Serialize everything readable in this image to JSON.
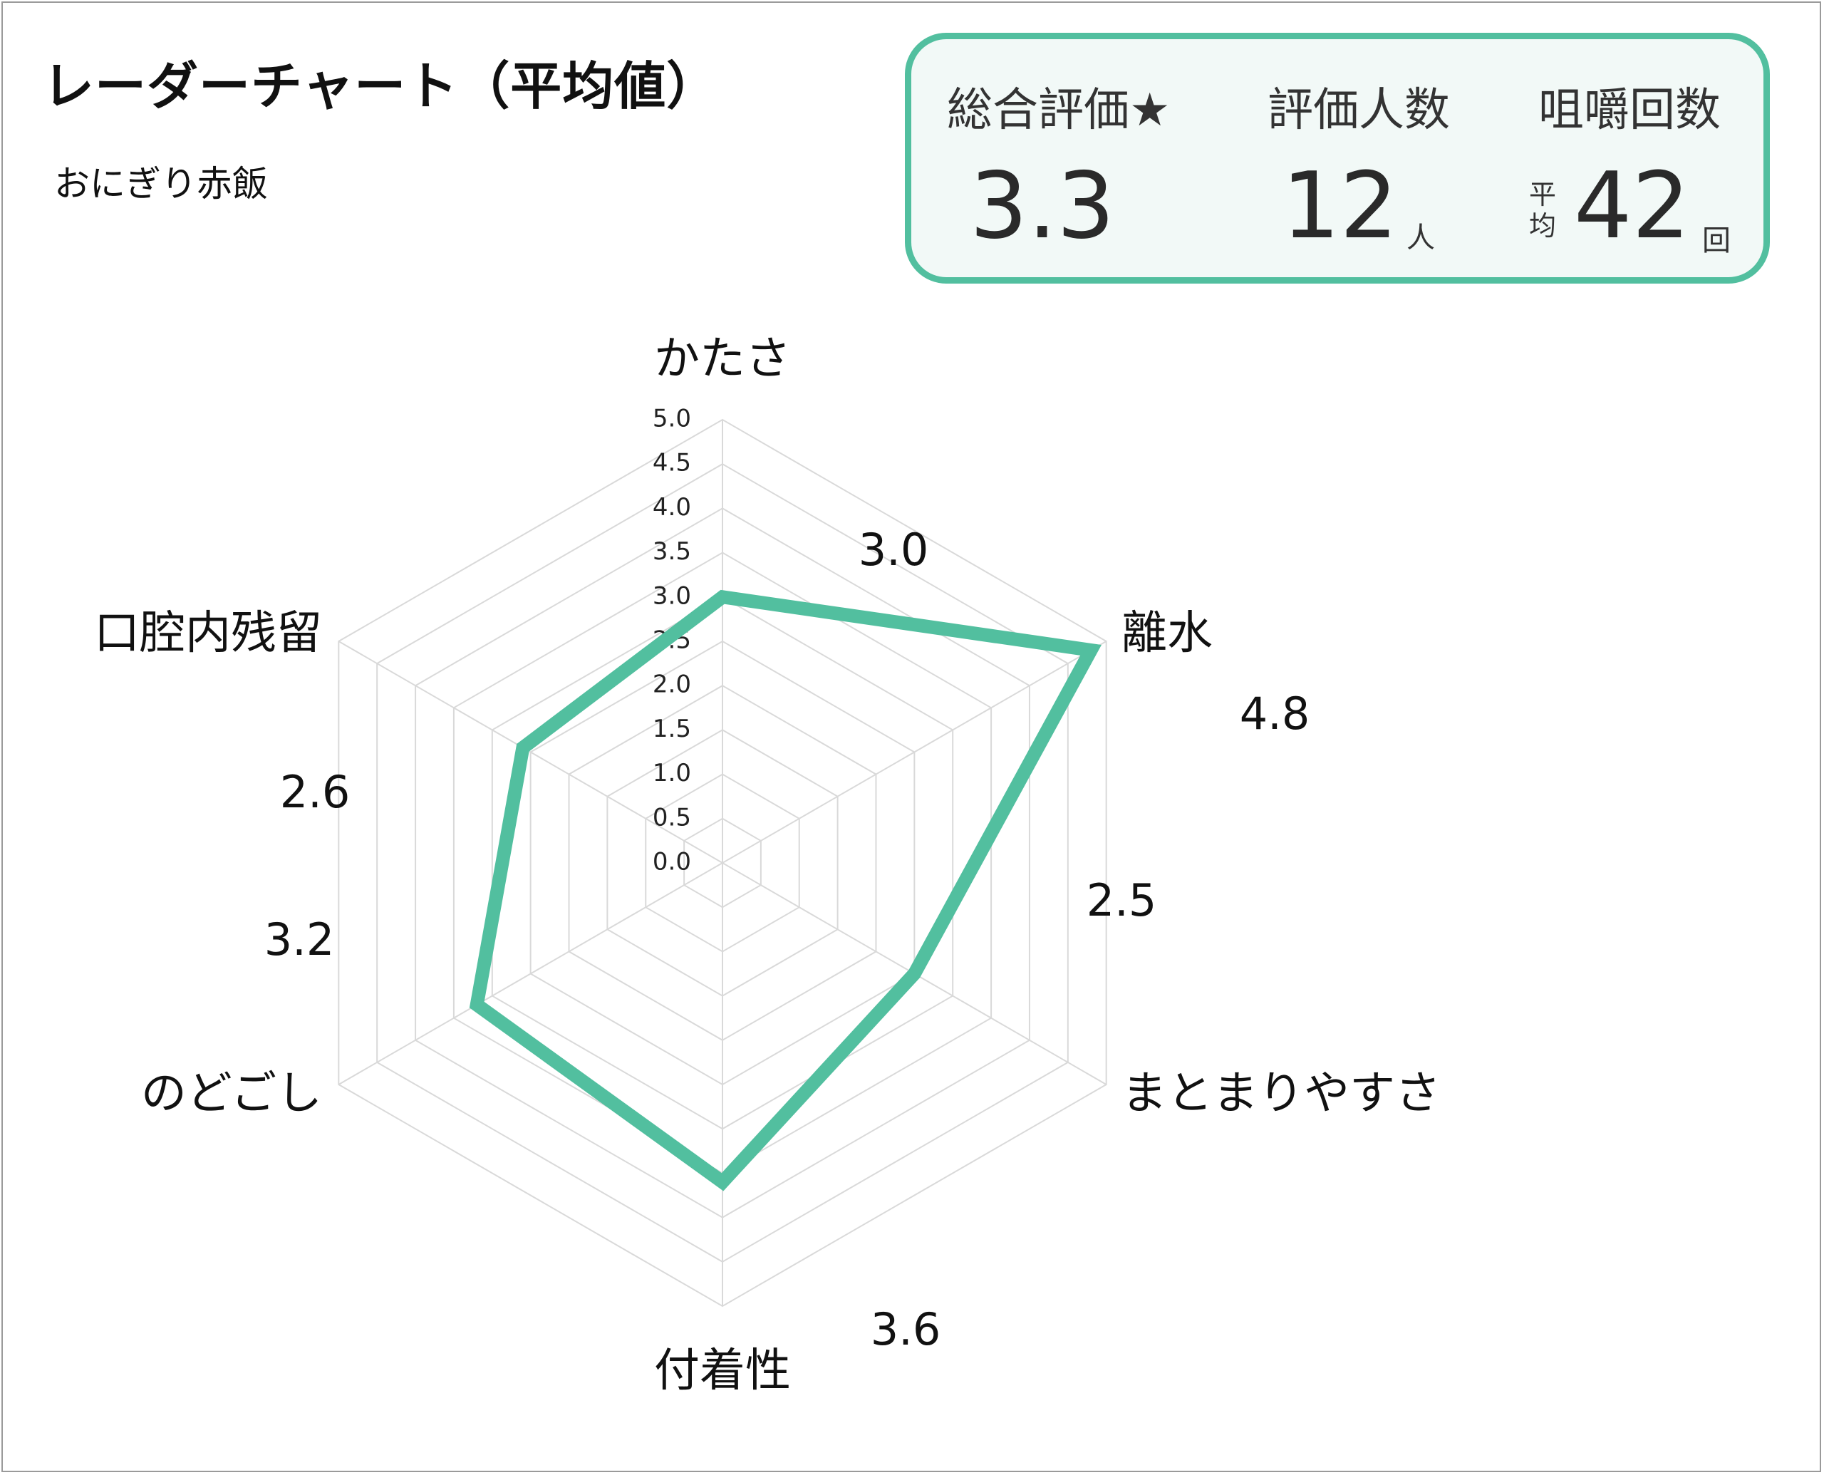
{
  "title": "レーダーチャート（平均値）",
  "subtitle": "おにぎり赤飯",
  "summary": {
    "overall_label": "総合評価★",
    "overall_value": "3.3",
    "people_label": "評価人数",
    "people_value": "12",
    "people_unit": "人",
    "chew_label": "咀嚼回数",
    "chew_avg_top": "平",
    "chew_avg_bottom": "均",
    "chew_value": "42",
    "chew_unit": "回"
  },
  "colors": {
    "accent": "#52bf9f",
    "grid": "#d9d9d9"
  },
  "chart_data": {
    "type": "radar",
    "title": "",
    "axes": [
      "かたさ",
      "離水",
      "まとまりやすさ",
      "付着性",
      "のどごし",
      "口腔内残留"
    ],
    "values": [
      3.0,
      4.8,
      2.5,
      3.6,
      3.2,
      2.6
    ],
    "value_labels": [
      "3.0",
      "4.8",
      "2.5",
      "3.6",
      "3.2",
      "2.6"
    ],
    "rlim": [
      0,
      5.0
    ],
    "ticks": [
      "0.0",
      "0.5",
      "1.0",
      "1.5",
      "2.0",
      "2.5",
      "3.0",
      "3.5",
      "4.0",
      "4.5",
      "5.0"
    ],
    "grid": true,
    "legend": "none"
  }
}
